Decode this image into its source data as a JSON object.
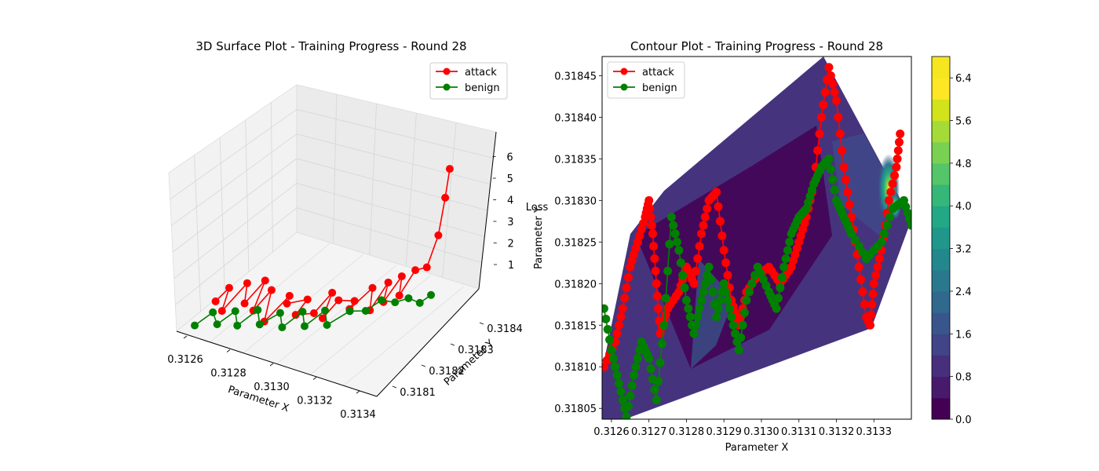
{
  "colors": {
    "attack": "#ff0000",
    "benign": "#008000"
  },
  "chart_data": [
    {
      "type": "scatter",
      "subtype": "3d-line-markers",
      "title": "3D Surface Plot - Training Progress - Round 28",
      "xlabel": "Parameter X",
      "ylabel": "Parameter Y",
      "zlabel": "Loss",
      "xticks": [
        "0.3126",
        "0.3128",
        "0.3130",
        "0.3132",
        "0.3134"
      ],
      "yticks": [
        "0.3181",
        "0.3182",
        "0.3183",
        "0.3184"
      ],
      "zticks": [
        "1",
        "2",
        "3",
        "4",
        "5",
        "6"
      ],
      "xlim": [
        0.31255,
        0.31345
      ],
      "ylim": [
        0.31803,
        0.31847
      ],
      "zlim": [
        0.5,
        6.5
      ],
      "legend": "top-right",
      "series": [
        {
          "name": "attack",
          "color": "#ff0000",
          "points": [
            [
              0.3126,
              0.31815,
              0.7
            ],
            [
              0.31263,
              0.31818,
              1.1
            ],
            [
              0.31266,
              0.31812,
              0.8
            ],
            [
              0.31269,
              0.3182,
              1.3
            ],
            [
              0.31272,
              0.31816,
              0.9
            ],
            [
              0.31275,
              0.31822,
              1.4
            ],
            [
              0.31278,
              0.31814,
              1.0
            ],
            [
              0.31281,
              0.31819,
              1.5
            ],
            [
              0.31284,
              0.31813,
              0.8
            ],
            [
              0.31287,
              0.31821,
              1.2
            ],
            [
              0.3129,
              0.31817,
              1.4
            ],
            [
              0.31293,
              0.31823,
              1.0
            ],
            [
              0.31296,
              0.31815,
              1.3
            ],
            [
              0.31299,
              0.3182,
              0.9
            ],
            [
              0.31302,
              0.31825,
              1.4
            ],
            [
              0.31305,
              0.31818,
              1.1
            ],
            [
              0.31308,
              0.31822,
              1.6
            ],
            [
              0.31311,
              0.31826,
              1.2
            ],
            [
              0.31314,
              0.31821,
              1.5
            ],
            [
              0.31317,
              0.31828,
              1.8
            ],
            [
              0.3132,
              0.31824,
              1.3
            ],
            [
              0.31322,
              0.3183,
              2.0
            ],
            [
              0.31324,
              0.31826,
              1.6
            ],
            [
              0.31326,
              0.31832,
              2.2
            ],
            [
              0.31328,
              0.31829,
              1.7
            ],
            [
              0.3133,
              0.31834,
              2.4
            ],
            [
              0.31331,
              0.31838,
              2.1
            ],
            [
              0.31332,
              0.31842,
              3.2
            ],
            [
              0.31333,
              0.31844,
              4.8
            ],
            [
              0.31334,
              0.31845,
              6.1
            ]
          ]
        },
        {
          "name": "benign",
          "color": "#008000",
          "points": [
            [
              0.3126,
              0.31806,
              0.6
            ],
            [
              0.31264,
              0.3181,
              0.9
            ],
            [
              0.31268,
              0.31808,
              0.7
            ],
            [
              0.31272,
              0.31812,
              1.0
            ],
            [
              0.31276,
              0.31809,
              0.8
            ],
            [
              0.3128,
              0.31814,
              1.1
            ],
            [
              0.31284,
              0.31811,
              0.9
            ],
            [
              0.31288,
              0.31816,
              1.0
            ],
            [
              0.31292,
              0.31813,
              0.8
            ],
            [
              0.31296,
              0.31818,
              1.1
            ],
            [
              0.313,
              0.31815,
              0.9
            ],
            [
              0.31304,
              0.3182,
              1.2
            ],
            [
              0.31308,
              0.31817,
              1.0
            ],
            [
              0.31312,
              0.31823,
              1.1
            ],
            [
              0.31316,
              0.31826,
              0.9
            ],
            [
              0.3132,
              0.31829,
              1.2
            ],
            [
              0.31324,
              0.31831,
              1.0
            ],
            [
              0.31328,
              0.31833,
              1.1
            ],
            [
              0.31332,
              0.31834,
              0.9
            ],
            [
              0.31336,
              0.31835,
              1.3
            ]
          ]
        }
      ]
    },
    {
      "type": "contour",
      "title": "Contour Plot - Training Progress - Round 28",
      "xlabel": "Parameter X",
      "ylabel": "Parameter Y",
      "xticks": [
        "0.3126",
        "0.3127",
        "0.3128",
        "0.3129",
        "0.3130",
        "0.3131",
        "0.3132",
        "0.3133"
      ],
      "yticks": [
        "0.31805",
        "0.31810",
        "0.31815",
        "0.31820",
        "0.31825",
        "0.31830",
        "0.31835",
        "0.31840",
        "0.31845"
      ],
      "xlim": [
        0.312575,
        0.3134
      ],
      "ylim": [
        0.318037,
        0.318473
      ],
      "colorbar_ticks": [
        "0.0",
        "0.8",
        "1.6",
        "2.4",
        "3.2",
        "4.0",
        "4.8",
        "5.6",
        "6.4"
      ],
      "colorbar_range": [
        0.0,
        6.8
      ],
      "legend": "top-left",
      "series": [
        {
          "name": "attack",
          "color": "#ff0000",
          "points": [
            [
              0.31258,
              0.3181
            ],
            [
              0.31261,
              0.31813
            ],
            [
              0.31263,
              0.31817
            ],
            [
              0.31265,
              0.31822
            ],
            [
              0.31267,
              0.31825
            ],
            [
              0.31269,
              0.31828
            ],
            [
              0.3127,
              0.3183
            ],
            [
              0.31271,
              0.31826
            ],
            [
              0.31272,
              0.3182
            ],
            [
              0.31273,
              0.31814
            ],
            [
              0.31275,
              0.31817
            ],
            [
              0.31278,
              0.31819
            ],
            [
              0.3128,
              0.31822
            ],
            [
              0.31282,
              0.3182
            ],
            [
              0.31284,
              0.31826
            ],
            [
              0.31286,
              0.3183
            ],
            [
              0.31288,
              0.31831
            ],
            [
              0.3129,
              0.31824
            ],
            [
              0.31292,
              0.31818
            ],
            [
              0.31294,
              0.31815
            ],
            [
              0.31296,
              0.31819
            ],
            [
              0.31299,
              0.31821
            ],
            [
              0.31302,
              0.31822
            ],
            [
              0.31305,
              0.3182
            ],
            [
              0.31308,
              0.31822
            ],
            [
              0.3131,
              0.31825
            ],
            [
              0.31312,
              0.31828
            ],
            [
              0.31314,
              0.31832
            ],
            [
              0.31316,
              0.3184
            ],
            [
              0.31318,
              0.31846
            ],
            [
              0.3132,
              0.31842
            ],
            [
              0.31322,
              0.31834
            ],
            [
              0.31324,
              0.31828
            ],
            [
              0.31326,
              0.31822
            ],
            [
              0.31328,
              0.31816
            ],
            [
              0.31329,
              0.31815
            ],
            [
              0.3133,
              0.3182
            ],
            [
              0.31332,
              0.31824
            ],
            [
              0.31334,
              0.3183
            ],
            [
              0.31336,
              0.31834
            ],
            [
              0.31337,
              0.31838
            ]
          ]
        },
        {
          "name": "benign",
          "color": "#008000",
          "points": [
            [
              0.31258,
              0.31817
            ],
            [
              0.3126,
              0.31812
            ],
            [
              0.31262,
              0.31808
            ],
            [
              0.31264,
              0.31804
            ],
            [
              0.31266,
              0.31809
            ],
            [
              0.31268,
              0.31813
            ],
            [
              0.3127,
              0.31811
            ],
            [
              0.31272,
              0.31806
            ],
            [
              0.31274,
              0.31815
            ],
            [
              0.31276,
              0.31828
            ],
            [
              0.31278,
              0.31824
            ],
            [
              0.3128,
              0.31818
            ],
            [
              0.31282,
              0.31814
            ],
            [
              0.31284,
              0.31818
            ],
            [
              0.31286,
              0.31822
            ],
            [
              0.31288,
              0.31816
            ],
            [
              0.3129,
              0.3182
            ],
            [
              0.31292,
              0.31816
            ],
            [
              0.31294,
              0.31812
            ],
            [
              0.31296,
              0.31818
            ],
            [
              0.31299,
              0.31822
            ],
            [
              0.31302,
              0.31819
            ],
            [
              0.31304,
              0.31817
            ],
            [
              0.31306,
              0.31822
            ],
            [
              0.31308,
              0.31826
            ],
            [
              0.3131,
              0.31828
            ],
            [
              0.31312,
              0.31829
            ],
            [
              0.31314,
              0.31832
            ],
            [
              0.31316,
              0.31834
            ],
            [
              0.31318,
              0.31835
            ],
            [
              0.3132,
              0.3183
            ],
            [
              0.31322,
              0.31828
            ],
            [
              0.31324,
              0.31826
            ],
            [
              0.31328,
              0.31823
            ],
            [
              0.31332,
              0.31825
            ],
            [
              0.31335,
              0.31829
            ],
            [
              0.31338,
              0.3183
            ],
            [
              0.3134,
              0.31827
            ]
          ]
        }
      ]
    }
  ]
}
